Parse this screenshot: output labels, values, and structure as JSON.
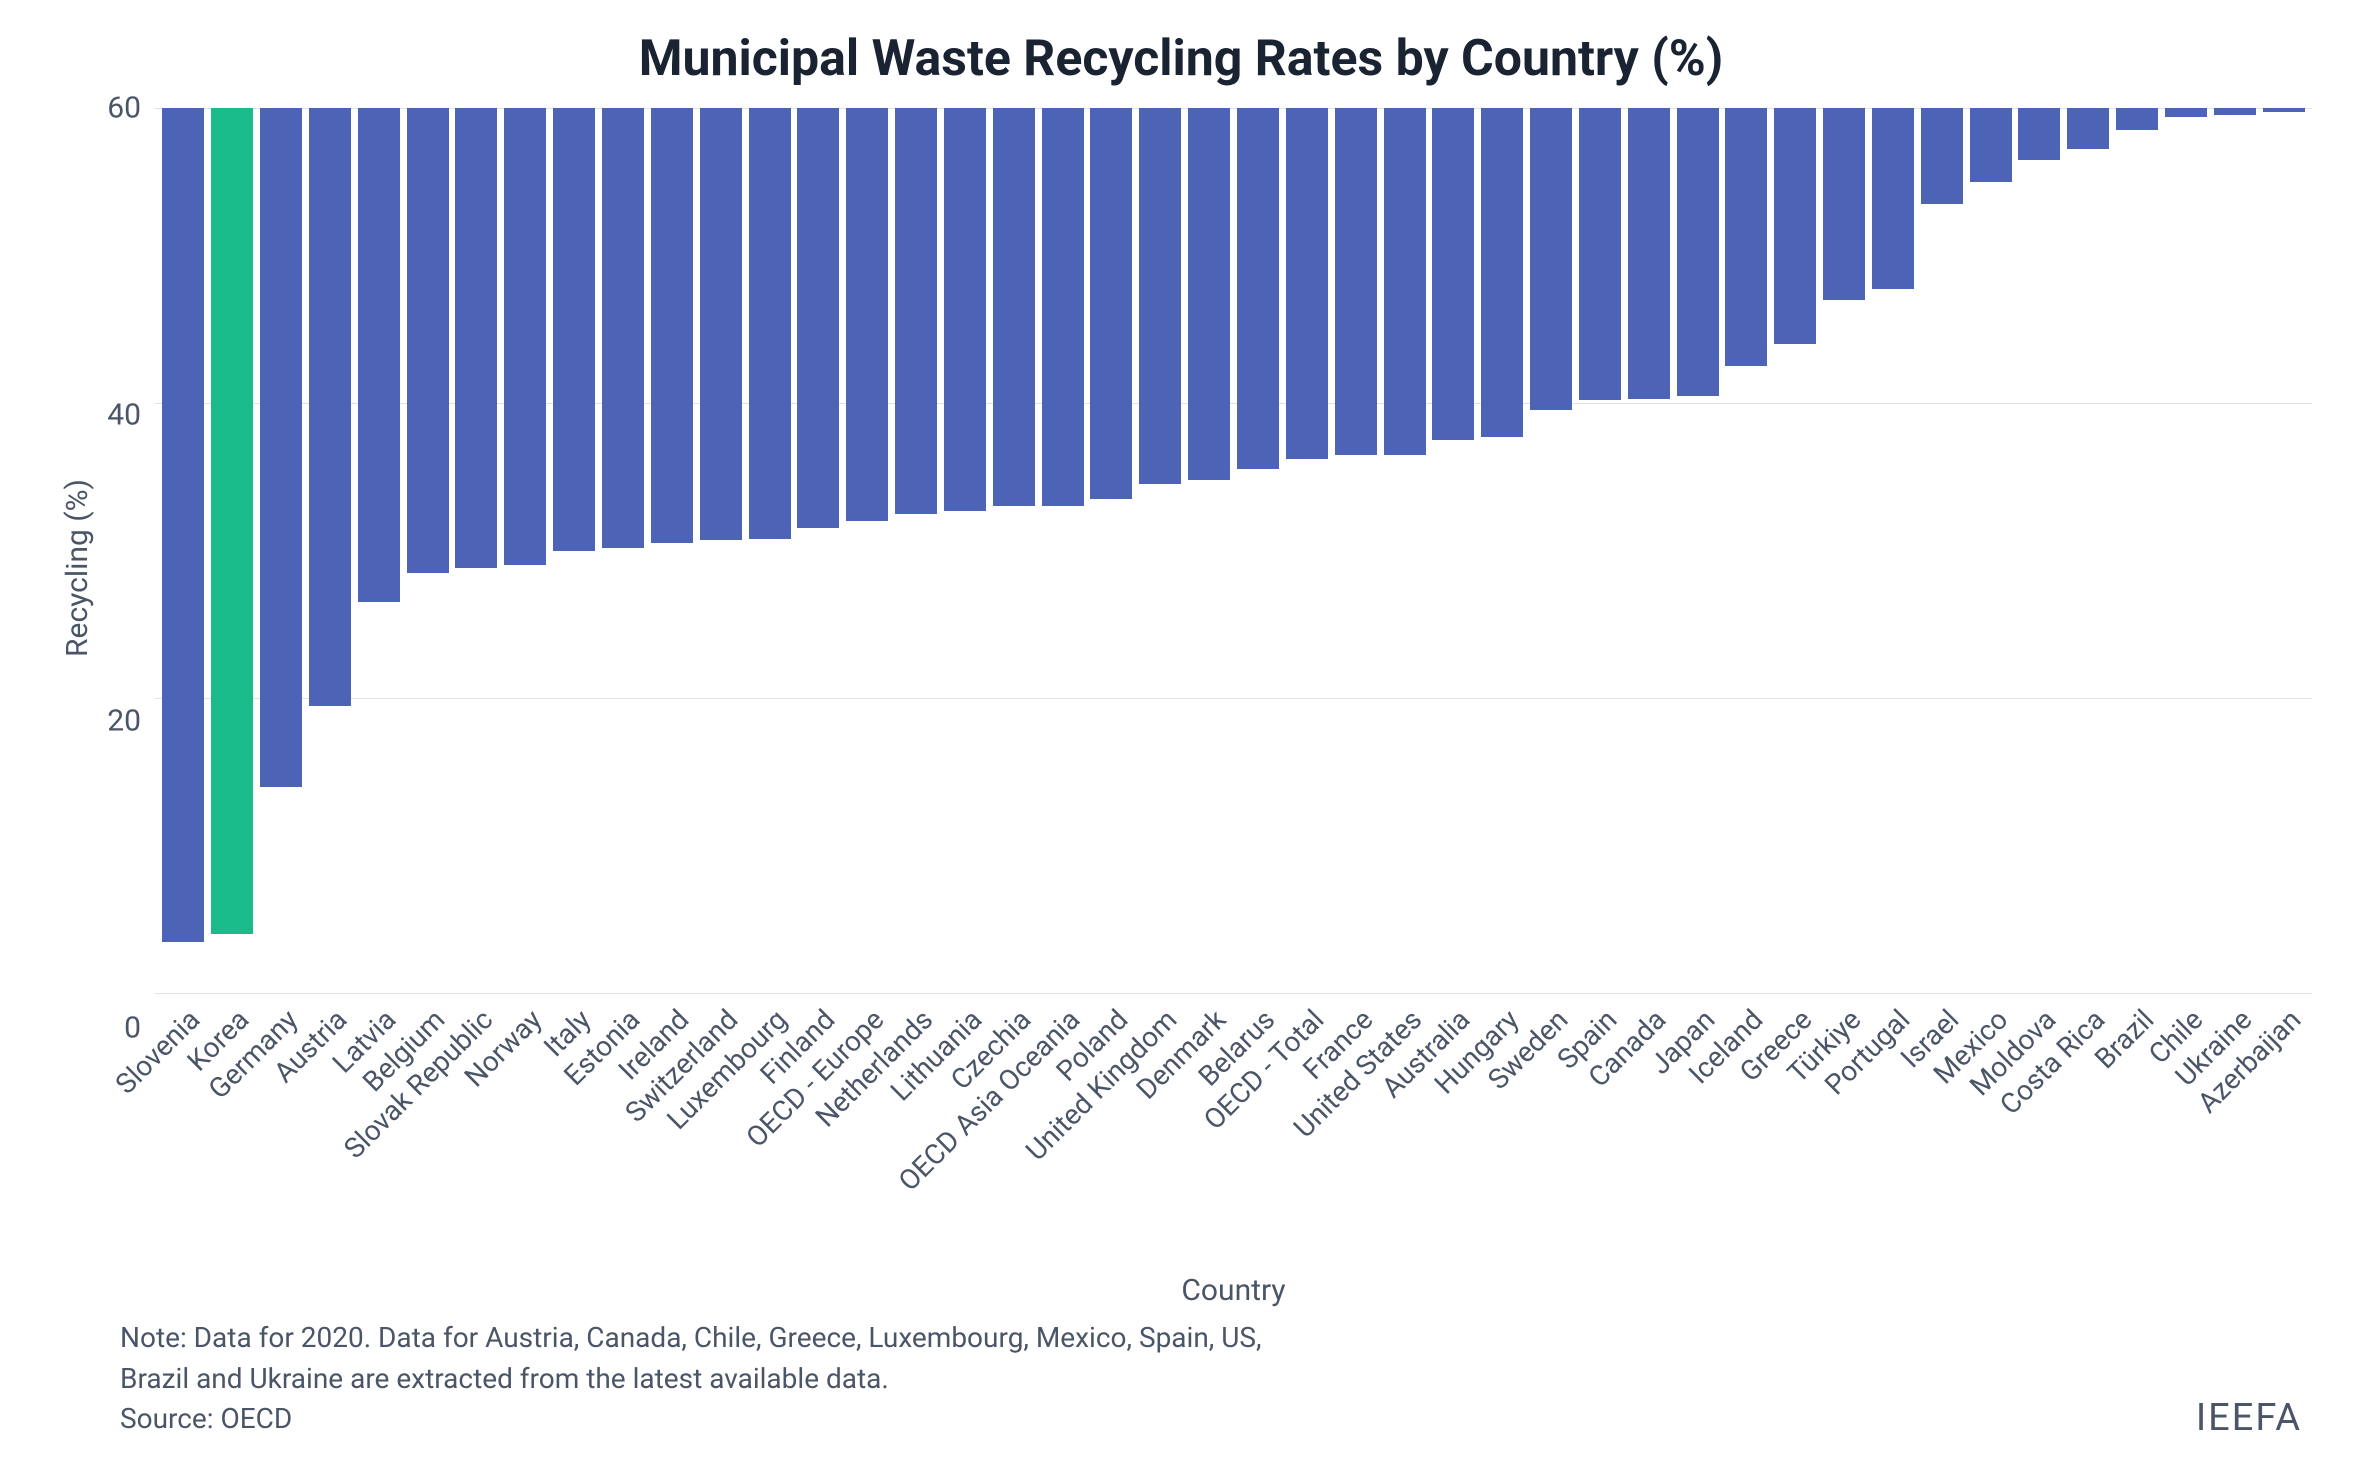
{
  "chart": {
    "type": "bar",
    "title": "Municipal Waste Recycling Rates by Country (%)",
    "title_fontsize": 50,
    "title_color": "#1a2332",
    "ylabel": "Recycling (%)",
    "xlabel": "Country",
    "label_fontsize": 30,
    "label_color": "#4a5568",
    "tick_fontsize": 30,
    "tick_color": "#4a5568",
    "background_color": "#ffffff",
    "grid_color": "#e2e2e2",
    "ylim": [
      0,
      60
    ],
    "yticks": [
      0,
      20,
      40,
      60
    ],
    "bar_width_ratio": 0.86,
    "default_bar_color": "#4c63b6",
    "highlight_bar_color": "#1abc8c",
    "categories": [
      "Slovenia",
      "Korea",
      "Germany",
      "Austria",
      "Latvia",
      "Belgium",
      "Slovak Republic",
      "Norway",
      "Italy",
      "Estonia",
      "Ireland",
      "Switzerland",
      "Luxembourg",
      "Finland",
      "OECD - Europe",
      "Netherlands",
      "Lithuania",
      "Czechia",
      "OECD Asia Oceania",
      "Poland",
      "United Kingdom",
      "Denmark",
      "Belarus",
      "OECD - Total",
      "France",
      "United States",
      "Australia",
      "Hungary",
      "Sweden",
      "Spain",
      "Canada",
      "Japan",
      "Iceland",
      "Greece",
      "Türkiye",
      "Portugal",
      "Israel",
      "Mexico",
      "Moldova",
      "Costa Rica",
      "Brazil",
      "Chile",
      "Ukraine",
      "Azerbaijan"
    ],
    "values": [
      56.5,
      56.0,
      46.0,
      40.5,
      33.5,
      31.5,
      31.2,
      31.0,
      30.0,
      29.8,
      29.5,
      29.3,
      29.2,
      28.5,
      28.0,
      27.5,
      27.3,
      27.0,
      27.0,
      26.5,
      25.5,
      25.2,
      24.5,
      23.8,
      23.5,
      23.5,
      22.5,
      22.3,
      20.5,
      19.8,
      19.7,
      19.5,
      17.5,
      16.0,
      13.0,
      12.3,
      6.5,
      5.0,
      3.5,
      2.8,
      1.5,
      0.6,
      0.5,
      0.3
    ],
    "bar_colors": [
      "#4c63b6",
      "#1abc8c",
      "#4c63b6",
      "#4c63b6",
      "#4c63b6",
      "#4c63b6",
      "#4c63b6",
      "#4c63b6",
      "#4c63b6",
      "#4c63b6",
      "#4c63b6",
      "#4c63b6",
      "#4c63b6",
      "#4c63b6",
      "#4c63b6",
      "#4c63b6",
      "#4c63b6",
      "#4c63b6",
      "#4c63b6",
      "#4c63b6",
      "#4c63b6",
      "#4c63b6",
      "#4c63b6",
      "#4c63b6",
      "#4c63b6",
      "#4c63b6",
      "#4c63b6",
      "#4c63b6",
      "#4c63b6",
      "#4c63b6",
      "#4c63b6",
      "#4c63b6",
      "#4c63b6",
      "#4c63b6",
      "#4c63b6",
      "#4c63b6",
      "#4c63b6",
      "#4c63b6",
      "#4c63b6",
      "#4c63b6",
      "#4c63b6",
      "#4c63b6",
      "#4c63b6",
      "#4c63b6"
    ],
    "x_tick_rotation_deg": -45
  },
  "footer": {
    "note_line1": "Note: Data for 2020. Data for Austria, Canada, Chile, Greece, Luxembourg, Mexico, Spain, US,",
    "note_line2": "Brazil and Ukraine are extracted from the latest available data.",
    "source": "Source: OECD",
    "attribution": "IEEFA",
    "note_fontsize": 28,
    "note_color": "#4a5568",
    "attribution_fontsize": 38
  }
}
